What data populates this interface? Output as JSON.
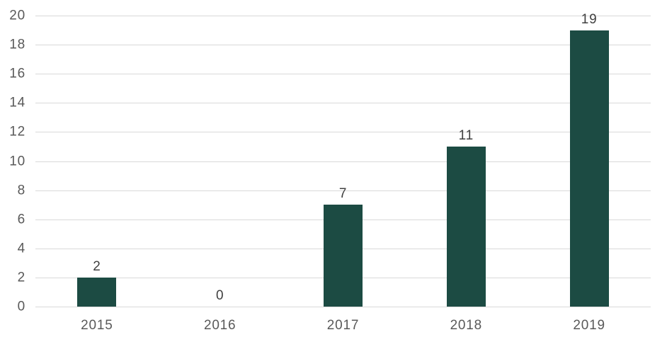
{
  "chart_data": {
    "type": "bar",
    "categories": [
      "2015",
      "2016",
      "2017",
      "2018",
      "2019"
    ],
    "values": [
      2,
      0,
      7,
      11,
      19
    ],
    "data_labels": [
      "2",
      "0",
      "7",
      "11",
      "19"
    ],
    "title": "",
    "xlabel": "",
    "ylabel": "",
    "ylim": [
      0,
      20
    ],
    "y_ticks": [
      0,
      2,
      4,
      6,
      8,
      10,
      12,
      14,
      16,
      18,
      20
    ],
    "grid": true,
    "legend_position": "none",
    "colors": {
      "bar_fill": "#1C4B43",
      "gridline": "#D9D9D9",
      "axis_tick_label": "#595959",
      "value_label": "#404040",
      "background": "#FFFFFF"
    }
  }
}
